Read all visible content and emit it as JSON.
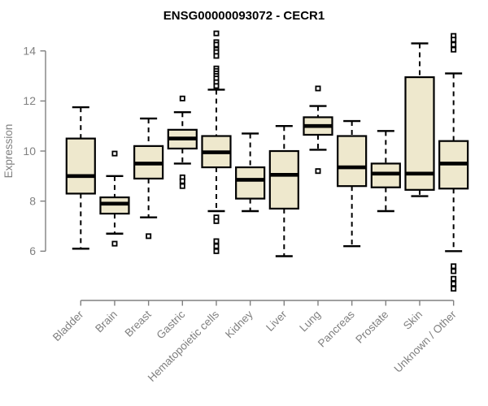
{
  "chart_data": {
    "type": "boxplot",
    "title": "ENSG00000093072 - CECR1",
    "ylabel": "Expression",
    "xlabel": "",
    "yticks": [
      6,
      8,
      10,
      12,
      14
    ],
    "ylim": [
      4.0,
      14.75
    ],
    "grid": false,
    "legend": "none",
    "box_fill_color": "#EEE8CD",
    "box_stroke_color": "#000000",
    "axis_color": "#808080",
    "tick_label_color": "#808080",
    "title_color": "#000000",
    "categories": [
      "Bladder",
      "Brain",
      "Breast",
      "Gastric",
      "Hematopoietic cells",
      "Kidney",
      "Liver",
      "Lung",
      "Pancreas",
      "Prostate",
      "Skin",
      "Unknown / Other"
    ],
    "series": [
      {
        "category": "Bladder",
        "whisker_low": 6.1,
        "q1": 8.3,
        "median": 9.0,
        "q3": 10.5,
        "whisker_high": 11.75,
        "outliers": []
      },
      {
        "category": "Brain",
        "whisker_low": 6.7,
        "q1": 7.5,
        "median": 7.9,
        "q3": 8.15,
        "whisker_high": 9.0,
        "outliers": [
          9.9,
          6.3
        ]
      },
      {
        "category": "Breast",
        "whisker_low": 7.35,
        "q1": 8.9,
        "median": 9.5,
        "q3": 10.2,
        "whisker_high": 11.3,
        "outliers": [
          6.6
        ]
      },
      {
        "category": "Gastric",
        "whisker_low": 9.5,
        "q1": 10.1,
        "median": 10.5,
        "q3": 10.85,
        "whisker_high": 11.55,
        "outliers": [
          12.1,
          8.95,
          8.8,
          8.6
        ]
      },
      {
        "category": "Hematopoietic cells",
        "whisker_low": 7.6,
        "q1": 9.35,
        "median": 9.95,
        "q3": 10.6,
        "whisker_high": 12.45,
        "outliers": [
          14.7,
          14.35,
          14.25,
          14.05,
          13.95,
          13.8,
          13.3,
          13.2,
          13.1,
          13.0,
          12.9,
          12.75,
          12.6,
          7.35,
          7.2,
          6.4,
          6.2,
          6.0
        ]
      },
      {
        "category": "Kidney",
        "whisker_low": 7.6,
        "q1": 8.1,
        "median": 8.85,
        "q3": 9.35,
        "whisker_high": 10.7,
        "outliers": []
      },
      {
        "category": "Liver",
        "whisker_low": 5.8,
        "q1": 7.7,
        "median": 9.05,
        "q3": 10.0,
        "whisker_high": 11.0,
        "outliers": []
      },
      {
        "category": "Lung",
        "whisker_low": 10.05,
        "q1": 10.65,
        "median": 11.0,
        "q3": 11.35,
        "whisker_high": 11.8,
        "outliers": [
          12.5,
          9.2
        ]
      },
      {
        "category": "Pancreas",
        "whisker_low": 6.2,
        "q1": 8.6,
        "median": 9.35,
        "q3": 10.6,
        "whisker_high": 11.2,
        "outliers": []
      },
      {
        "category": "Prostate",
        "whisker_low": 7.6,
        "q1": 8.55,
        "median": 9.1,
        "q3": 9.5,
        "whisker_high": 10.8,
        "outliers": []
      },
      {
        "category": "Skin",
        "whisker_low": 8.2,
        "q1": 8.45,
        "median": 9.1,
        "q3": 12.95,
        "whisker_high": 14.3,
        "outliers": []
      },
      {
        "category": "Unknown / Other",
        "whisker_low": 6.0,
        "q1": 8.5,
        "median": 9.5,
        "q3": 10.4,
        "whisker_high": 13.1,
        "outliers": [
          14.6,
          14.45,
          14.25,
          14.05,
          5.4,
          5.2,
          4.9,
          4.7,
          4.5
        ]
      }
    ]
  }
}
